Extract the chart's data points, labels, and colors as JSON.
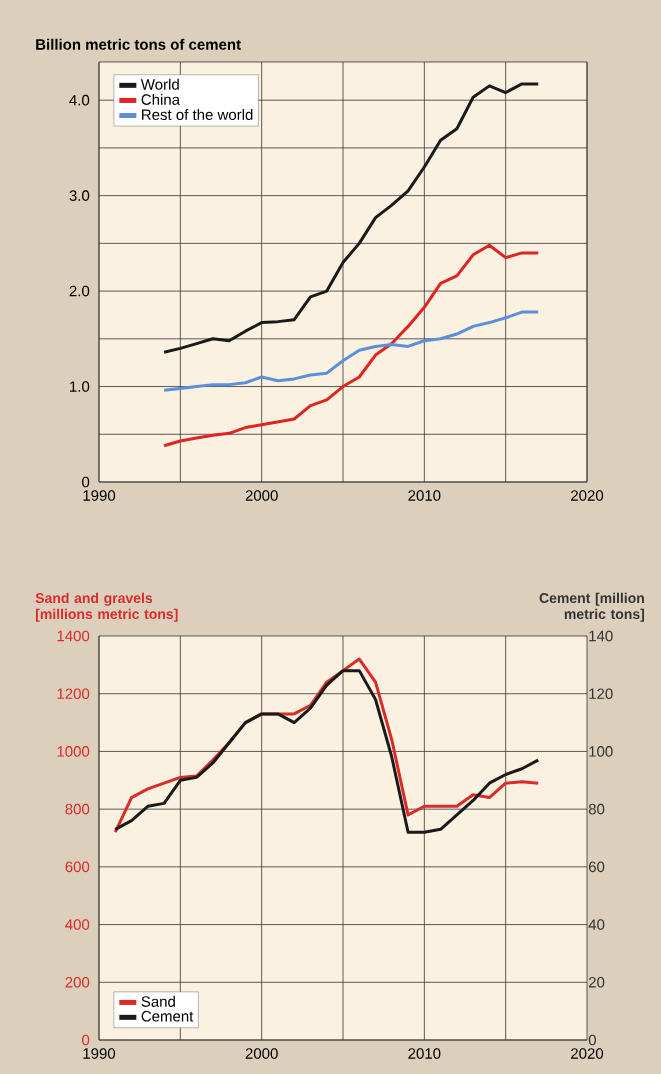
{
  "chart_data": [
    {
      "type": "line",
      "title": "Billion metric tons of cement",
      "x": [
        1994,
        1995,
        1996,
        1997,
        1998,
        1999,
        2000,
        2001,
        2002,
        2003,
        2004,
        2005,
        2006,
        2007,
        2008,
        2009,
        2010,
        2011,
        2012,
        2013,
        2014,
        2015,
        2016,
        2017
      ],
      "series": [
        {
          "name": "World",
          "color": "#1a1a1a",
          "values": [
            1.36,
            1.4,
            1.45,
            1.5,
            1.48,
            1.58,
            1.67,
            1.68,
            1.7,
            1.94,
            2.0,
            2.3,
            2.5,
            2.77,
            2.9,
            3.05,
            3.3,
            3.58,
            3.7,
            4.03,
            4.15,
            4.08,
            4.17,
            4.17
          ]
        },
        {
          "name": "China",
          "color": "#e02424",
          "values": [
            0.38,
            0.43,
            0.46,
            0.49,
            0.51,
            0.57,
            0.6,
            0.63,
            0.66,
            0.8,
            0.86,
            1.0,
            1.1,
            1.33,
            1.45,
            1.63,
            1.83,
            2.08,
            2.16,
            2.38,
            2.48,
            2.35,
            2.4,
            2.4
          ]
        },
        {
          "name": "Rest of the world",
          "color": "#5b8fd9",
          "values": [
            0.96,
            0.98,
            1.0,
            1.02,
            1.02,
            1.04,
            1.1,
            1.06,
            1.08,
            1.12,
            1.14,
            1.27,
            1.38,
            1.42,
            1.44,
            1.42,
            1.48,
            1.5,
            1.55,
            1.63,
            1.67,
            1.72,
            1.78,
            1.78
          ]
        }
      ],
      "xlim": [
        1990,
        2020
      ],
      "xticks": [
        1990,
        {
          "value": 1995,
          "label": null
        },
        2000,
        {
          "value": 2005,
          "label": null
        },
        2010,
        {
          "value": 2015,
          "label": null
        },
        2020
      ],
      "ylim": [
        0,
        4.4
      ],
      "yticks": [
        0,
        {
          "value": 0.5,
          "label": null
        },
        {
          "value": 1,
          "label": "1.0"
        },
        {
          "value": 1.5,
          "label": null
        },
        {
          "value": 2,
          "label": "2.0"
        },
        {
          "value": 2.5,
          "label": null
        },
        {
          "value": 3,
          "label": "3.0"
        },
        {
          "value": 3.5,
          "label": null
        },
        {
          "value": 4,
          "label": "4.0"
        }
      ],
      "grid": true,
      "legend": "top left"
    },
    {
      "type": "line",
      "ylabel": "Sand and gravels [millions metric tons]",
      "y2label": "Cement [million metric tons]",
      "x": [
        1991,
        1992,
        1993,
        1994,
        1995,
        1996,
        1997,
        1998,
        1999,
        2000,
        2001,
        2002,
        2003,
        2004,
        2005,
        2006,
        2007,
        2008,
        2009,
        2010,
        2011,
        2012,
        2013,
        2014,
        2015,
        2016,
        2017
      ],
      "series": [
        {
          "name": "Sand",
          "color": "#d92b2b",
          "values": [
            720,
            840,
            870,
            890,
            910,
            915,
            970,
            1030,
            1100,
            1130,
            1130,
            1130,
            1160,
            1240,
            1280,
            1320,
            1240,
            1040,
            780,
            810,
            810,
            810,
            850,
            840,
            890,
            895,
            890
          ]
        },
        {
          "name": "Cement",
          "color": "#1a1a1a",
          "axis": "y2",
          "values": [
            73,
            76,
            81,
            82,
            90,
            91,
            96,
            103,
            110,
            113,
            113,
            110,
            115,
            123,
            128,
            128,
            118,
            98,
            72,
            72,
            73,
            78,
            83,
            89,
            92,
            94,
            97
          ]
        }
      ],
      "xlim": [
        1990,
        2020
      ],
      "xticks": [
        1990,
        {
          "value": 1995,
          "label": null
        },
        2000,
        {
          "value": 2005,
          "label": null
        },
        2010,
        {
          "value": 2015,
          "label": null
        },
        2020
      ],
      "ylim": [
        0,
        1400
      ],
      "yticks": [
        0,
        200,
        400,
        600,
        800,
        1000,
        1200,
        1400
      ],
      "y2lim": [
        0,
        140
      ],
      "y2ticks": [
        0,
        20,
        40,
        60,
        80,
        100,
        120,
        140
      ],
      "grid": true,
      "legend": "bottom left"
    }
  ]
}
